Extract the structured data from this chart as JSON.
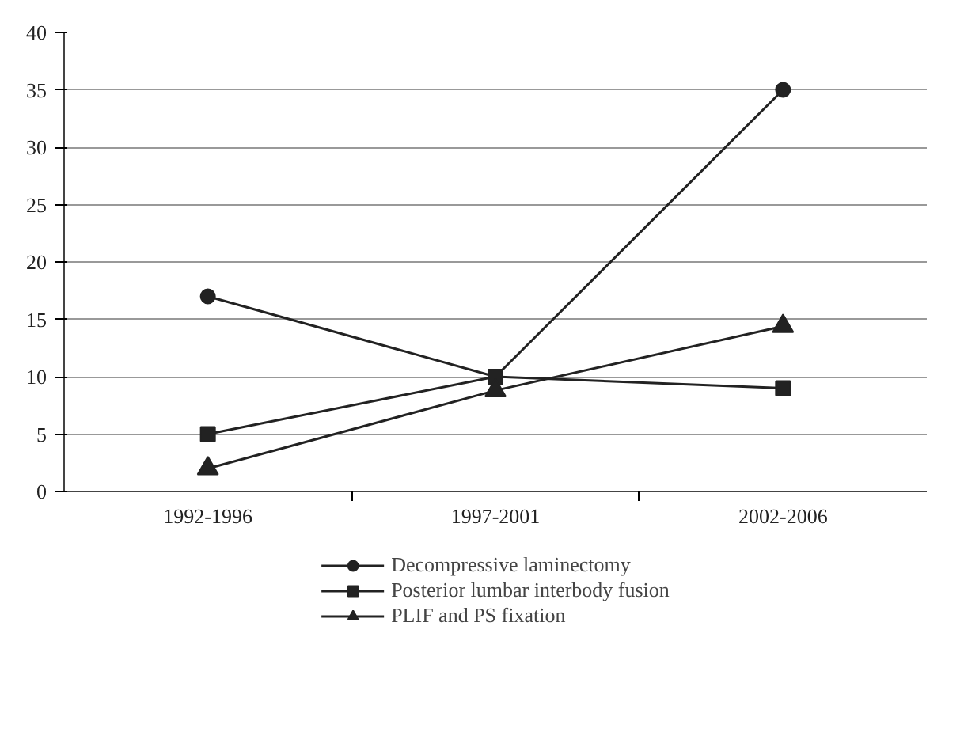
{
  "chart_data": {
    "type": "line",
    "categories": [
      "1992-1996",
      "1997-2001",
      "2002-2006"
    ],
    "series": [
      {
        "name": "Decompressive laminectomy",
        "color": "#222222",
        "marker": "circle",
        "values": [
          17,
          10,
          35
        ]
      },
      {
        "name": "Posterior lumbar interbody fusion",
        "color": "#222222",
        "marker": "square",
        "values": [
          5,
          10,
          9
        ]
      },
      {
        "name": "PLIF and PS fixation",
        "color": "#222222",
        "marker": "triangle",
        "values": [
          2,
          8.8,
          14.4
        ]
      }
    ],
    "ylim": [
      0,
      40
    ],
    "yticks": [
      0,
      5,
      10,
      15,
      20,
      25,
      30,
      35,
      40
    ],
    "grid": "y",
    "legend": "bottom",
    "line_style": "solid"
  }
}
